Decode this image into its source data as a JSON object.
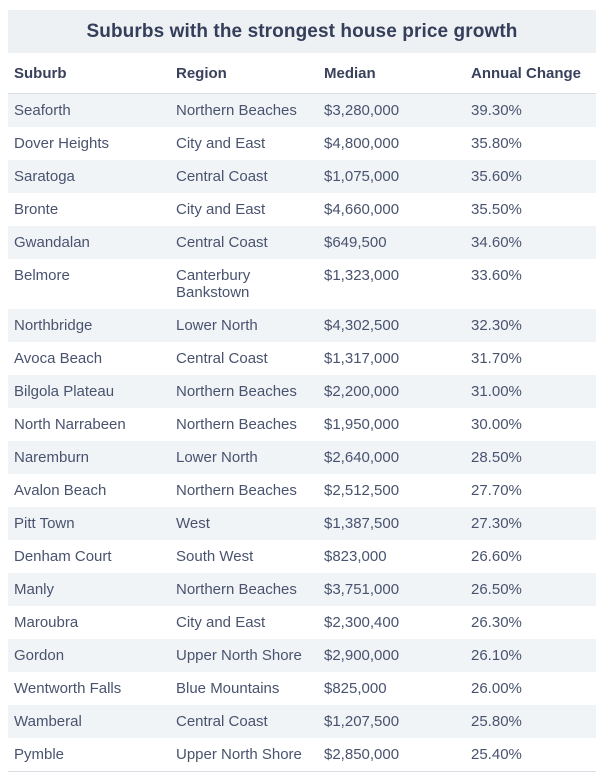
{
  "title": "Suburbs with the strongest house price growth",
  "colors": {
    "title_panel_bg": "#eef1f4",
    "row_alt_bg": "#f1f4f7",
    "row_bg": "#ffffff",
    "border": "#d9dee4",
    "title_text": "#353e5a",
    "header_text": "#39415c",
    "body_text": "#49536e"
  },
  "table": {
    "columns": [
      "Suburb",
      "Region",
      "Median",
      "Annual Change"
    ],
    "rows": [
      {
        "suburb": "Seaforth",
        "region": "Northern Beaches",
        "median": "$3,280,000",
        "annual_change": "39.30%"
      },
      {
        "suburb": "Dover Heights",
        "region": "City and East",
        "median": "$4,800,000",
        "annual_change": "35.80%"
      },
      {
        "suburb": "Saratoga",
        "region": "Central Coast",
        "median": "$1,075,000",
        "annual_change": "35.60%"
      },
      {
        "suburb": "Bronte",
        "region": "City and East",
        "median": "$4,660,000",
        "annual_change": "35.50%"
      },
      {
        "suburb": "Gwandalan",
        "region": "Central Coast",
        "median": "$649,500",
        "annual_change": "34.60%"
      },
      {
        "suburb": "Belmore",
        "region": "Canterbury Bankstown",
        "median": "$1,323,000",
        "annual_change": "33.60%"
      },
      {
        "suburb": "Northbridge",
        "region": "Lower North",
        "median": "$4,302,500",
        "annual_change": "32.30%"
      },
      {
        "suburb": "Avoca Beach",
        "region": "Central Coast",
        "median": "$1,317,000",
        "annual_change": "31.70%"
      },
      {
        "suburb": "Bilgola Plateau",
        "region": "Northern Beaches",
        "median": "$2,200,000",
        "annual_change": "31.00%"
      },
      {
        "suburb": "North Narrabeen",
        "region": "Northern Beaches",
        "median": "$1,950,000",
        "annual_change": "30.00%"
      },
      {
        "suburb": "Naremburn",
        "region": "Lower North",
        "median": "$2,640,000",
        "annual_change": "28.50%"
      },
      {
        "suburb": "Avalon Beach",
        "region": "Northern Beaches",
        "median": "$2,512,500",
        "annual_change": "27.70%"
      },
      {
        "suburb": "Pitt Town",
        "region": "West",
        "median": "$1,387,500",
        "annual_change": "27.30%"
      },
      {
        "suburb": "Denham Court",
        "region": "South West",
        "median": "$823,000",
        "annual_change": "26.60%"
      },
      {
        "suburb": "Manly",
        "region": "Northern Beaches",
        "median": "$3,751,000",
        "annual_change": "26.50%"
      },
      {
        "suburb": "Maroubra",
        "region": "City and East",
        "median": "$2,300,400",
        "annual_change": "26.30%"
      },
      {
        "suburb": "Gordon",
        "region": "Upper North Shore",
        "median": "$2,900,000",
        "annual_change": "26.10%"
      },
      {
        "suburb": "Wentworth Falls",
        "region": "Blue Mountains",
        "median": "$825,000",
        "annual_change": "26.00%"
      },
      {
        "suburb": "Wamberal",
        "region": "Central Coast",
        "median": "$1,207,500",
        "annual_change": "25.80%"
      },
      {
        "suburb": "Pymble",
        "region": "Upper North Shore",
        "median": "$2,850,000",
        "annual_change": "25.40%"
      }
    ]
  },
  "chart_data": {
    "type": "table",
    "title": "Suburbs with the strongest house price growth",
    "columns": [
      "Suburb",
      "Region",
      "Median",
      "Annual Change"
    ],
    "median_values_aud": [
      3280000,
      4800000,
      1075000,
      4660000,
      649500,
      1323000,
      4302500,
      1317000,
      2200000,
      1950000,
      2640000,
      2512500,
      1387500,
      823000,
      3751000,
      2300400,
      2900000,
      825000,
      1207500,
      2850000
    ],
    "annual_change_pct": [
      39.3,
      35.8,
      35.6,
      35.5,
      34.6,
      33.6,
      32.3,
      31.7,
      31.0,
      30.0,
      28.5,
      27.7,
      27.3,
      26.6,
      26.5,
      26.3,
      26.1,
      26.0,
      25.8,
      25.4
    ]
  }
}
